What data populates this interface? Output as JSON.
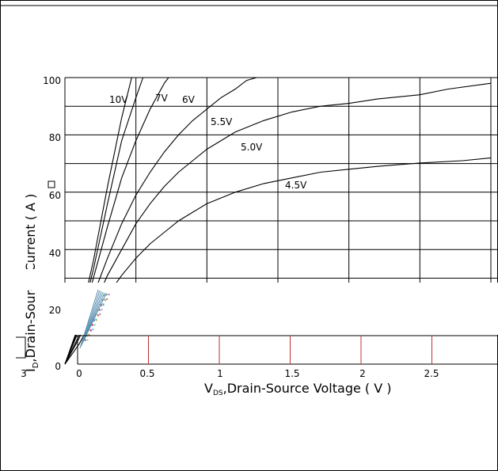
{
  "chart_data": {
    "type": "line",
    "xlabel_sub": "DS",
    "xlabel_v": "V",
    "xlabel": ",Drain-Source Voltage ( V )",
    "ylabel": "I",
    "ylabel_sub": "D",
    "ylabel_text": ",Drain-Source Current ( A )",
    "x_ticks": [
      "0",
      "0.5",
      "1",
      "1.5",
      "2",
      "2.5",
      "3"
    ],
    "y_ticks": [
      "0",
      "20",
      "40",
      "60",
      "80",
      "100"
    ],
    "xlim": [
      0,
      3
    ],
    "ylim": [
      0,
      100
    ],
    "grid": true,
    "series": [
      {
        "name": "10V",
        "points": [
          [
            0,
            0
          ],
          [
            0.1,
            14
          ],
          [
            0.2,
            36
          ],
          [
            0.3,
            62
          ],
          [
            0.4,
            86
          ],
          [
            0.47,
            100
          ]
        ]
      },
      {
        "name": "7V",
        "points": [
          [
            0,
            0
          ],
          [
            0.1,
            13
          ],
          [
            0.2,
            33
          ],
          [
            0.3,
            56
          ],
          [
            0.4,
            78
          ],
          [
            0.5,
            93
          ],
          [
            0.55,
            100
          ]
        ]
      },
      {
        "name": "6V",
        "points": [
          [
            0,
            0
          ],
          [
            0.1,
            12
          ],
          [
            0.2,
            30
          ],
          [
            0.3,
            48
          ],
          [
            0.4,
            65
          ],
          [
            0.5,
            78
          ],
          [
            0.6,
            89
          ],
          [
            0.7,
            98
          ],
          [
            0.73,
            100
          ]
        ]
      },
      {
        "name": "5.5V",
        "points": [
          [
            0,
            0
          ],
          [
            0.1,
            10
          ],
          [
            0.2,
            24
          ],
          [
            0.3,
            37
          ],
          [
            0.4,
            49
          ],
          [
            0.5,
            59
          ],
          [
            0.6,
            67
          ],
          [
            0.7,
            74
          ],
          [
            0.8,
            80
          ],
          [
            0.9,
            85
          ],
          [
            1.0,
            89
          ],
          [
            1.1,
            93
          ],
          [
            1.2,
            96
          ],
          [
            1.28,
            99
          ],
          [
            1.35,
            100
          ]
        ]
      },
      {
        "name": "5.0V",
        "points": [
          [
            0,
            0
          ],
          [
            0.1,
            9
          ],
          [
            0.2,
            20
          ],
          [
            0.3,
            31
          ],
          [
            0.4,
            40
          ],
          [
            0.5,
            49
          ],
          [
            0.6,
            56
          ],
          [
            0.7,
            62
          ],
          [
            0.8,
            67
          ],
          [
            0.9,
            71
          ],
          [
            1.0,
            75
          ],
          [
            1.2,
            81
          ],
          [
            1.4,
            85
          ],
          [
            1.6,
            88
          ],
          [
            1.8,
            90
          ],
          [
            2.0,
            91
          ],
          [
            2.2,
            92.5
          ],
          [
            2.5,
            94
          ],
          [
            2.7,
            96
          ],
          [
            3.0,
            98
          ]
        ]
      },
      {
        "name": "4.5V",
        "points": [
          [
            0,
            0
          ],
          [
            0.1,
            7
          ],
          [
            0.2,
            16
          ],
          [
            0.3,
            24
          ],
          [
            0.4,
            31
          ],
          [
            0.5,
            37
          ],
          [
            0.6,
            42
          ],
          [
            0.7,
            46
          ],
          [
            0.8,
            50
          ],
          [
            0.9,
            53
          ],
          [
            1.0,
            56
          ],
          [
            1.2,
            60
          ],
          [
            1.4,
            63
          ],
          [
            1.6,
            65
          ],
          [
            1.8,
            67
          ],
          [
            2.0,
            68
          ],
          [
            2.2,
            69
          ],
          [
            2.5,
            70.2
          ],
          [
            2.8,
            71
          ],
          [
            3.0,
            72
          ]
        ]
      }
    ]
  }
}
